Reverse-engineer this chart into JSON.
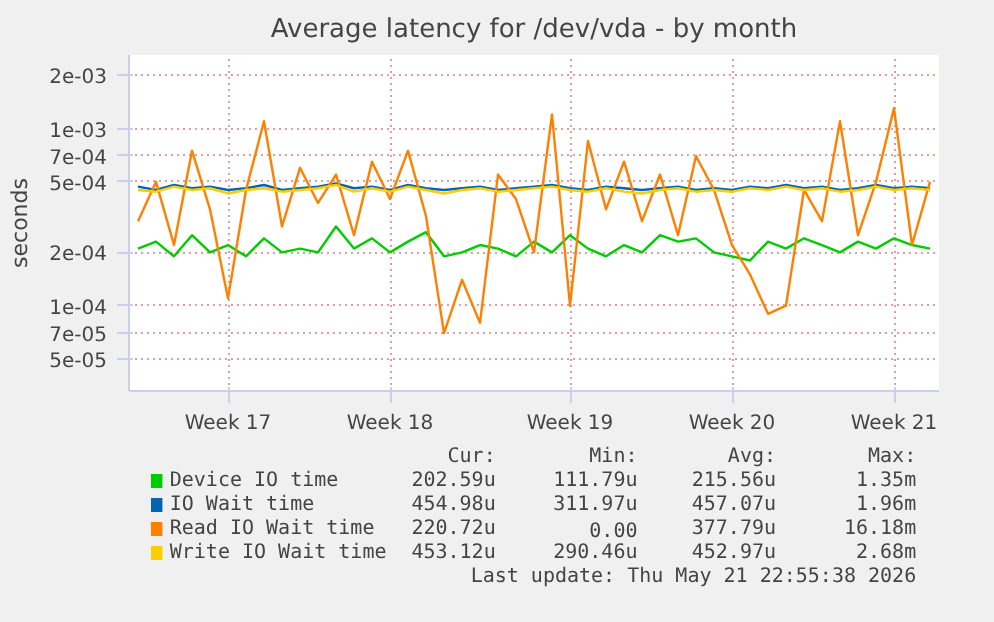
{
  "chart_data": {
    "type": "line",
    "title": "Average latency for /dev/vda - by month",
    "ylabel": "seconds",
    "categories": [
      null,
      null,
      null,
      null,
      null,
      "Week 17",
      null,
      null,
      null,
      null,
      null,
      null,
      null,
      null,
      "Week 18",
      null,
      null,
      null,
      null,
      null,
      null,
      null,
      null,
      null,
      "Week 19",
      null,
      null,
      null,
      null,
      null,
      null,
      null,
      null,
      "Week 20",
      null,
      null,
      null,
      null,
      null,
      null,
      null,
      null,
      "Week 21",
      null,
      null
    ],
    "series": [
      {
        "name": "Device IO time",
        "color": "#00cc00",
        "values": [
          0.00021,
          0.00023,
          0.00019,
          0.00025,
          0.0002,
          0.00022,
          0.00019,
          0.00024,
          0.0002,
          0.00021,
          0.0002,
          0.00028,
          0.00021,
          0.00024,
          0.0002,
          0.00023,
          0.00026,
          0.00019,
          0.0002,
          0.00022,
          0.00021,
          0.00019,
          0.00023,
          0.0002,
          0.00025,
          0.00021,
          0.00019,
          0.00022,
          0.0002,
          0.00025,
          0.00023,
          0.00024,
          0.0002,
          0.00019,
          0.00018,
          0.00023,
          0.00021,
          0.00024,
          0.00022,
          0.0002,
          0.00023,
          0.00021,
          0.00024,
          0.00022,
          0.00021
        ]
      },
      {
        "name": "IO Wait time",
        "color": "#0066b3",
        "values": [
          0.00047,
          0.00045,
          0.00048,
          0.00046,
          0.00047,
          0.00045,
          0.00046,
          0.00048,
          0.00045,
          0.00046,
          0.00047,
          0.00049,
          0.00046,
          0.00047,
          0.00045,
          0.00048,
          0.00046,
          0.00045,
          0.00046,
          0.00047,
          0.00045,
          0.00046,
          0.00047,
          0.00048,
          0.00046,
          0.00045,
          0.00047,
          0.00046,
          0.00045,
          0.00046,
          0.00047,
          0.00045,
          0.00046,
          0.00045,
          0.00047,
          0.00046,
          0.00048,
          0.00046,
          0.00047,
          0.00045,
          0.00046,
          0.00048,
          0.00046,
          0.00047,
          0.00046
        ]
      },
      {
        "name": "Read IO Wait time",
        "color": "#ff8000",
        "values": [
          0.0003,
          0.0005,
          0.00022,
          0.00075,
          0.00035,
          0.00011,
          0.00045,
          0.0011,
          0.00028,
          0.0006,
          0.00038,
          0.00055,
          0.00025,
          0.00065,
          0.0004,
          0.00075,
          0.00032,
          7e-05,
          0.00014,
          8e-05,
          0.00055,
          0.0004,
          0.0002,
          0.0012,
          0.0001,
          0.00085,
          0.00035,
          0.00065,
          0.0003,
          0.00055,
          0.00025,
          0.0007,
          0.00045,
          0.00022,
          0.00015,
          9e-05,
          0.0001,
          0.00045,
          0.0003,
          0.0011,
          0.00025,
          0.0005,
          0.0013,
          0.00022,
          0.0005
        ]
      },
      {
        "name": "Write IO Wait time",
        "color": "#ffcc00",
        "values": [
          0.00045,
          0.00044,
          0.00047,
          0.00045,
          0.00046,
          0.00043,
          0.00045,
          0.00046,
          0.00044,
          0.00045,
          0.00046,
          0.00048,
          0.00044,
          0.00046,
          0.00044,
          0.00047,
          0.00045,
          0.00043,
          0.00045,
          0.00046,
          0.00044,
          0.00045,
          0.00046,
          0.00047,
          0.00045,
          0.00044,
          0.00046,
          0.00044,
          0.00043,
          0.00045,
          0.00046,
          0.00044,
          0.00045,
          0.00044,
          0.00046,
          0.00045,
          0.00047,
          0.00045,
          0.00046,
          0.00044,
          0.00045,
          0.00047,
          0.00045,
          0.00046,
          0.00045
        ]
      }
    ],
    "log": true,
    "grid": true,
    "legend": "bottom",
    "line_style": "solid",
    "ylim": [
      3.3e-05,
      0.0026
    ],
    "yticks": [
      {
        "value": 5e-05,
        "label": "5e-05"
      },
      {
        "value": 7e-05,
        "label": "7e-05"
      },
      {
        "value": 0.0001,
        "label": "1e-04"
      },
      {
        "value": 0.0002,
        "label": "2e-04"
      },
      {
        "value": 0.0005,
        "label": "5e-04"
      },
      {
        "value": 0.0007,
        "label": "7e-04"
      },
      {
        "value": 0.001,
        "label": "1e-03"
      },
      {
        "value": 0.002,
        "label": "2e-03"
      }
    ],
    "annotations": [
      "Cur:",
      "Min:",
      "Avg:",
      "Max:",
      "202.59u",
      "111.79u",
      "215.56u",
      "1.35m",
      "454.98u",
      "311.97u",
      "457.07u",
      "1.96m",
      "220.72u",
      "0.00",
      "377.79u",
      "16.18m",
      "453.12u",
      "290.46u",
      "452.97u",
      "2.68m",
      "Last update: Thu May 21 22:55:38 2026"
    ]
  }
}
